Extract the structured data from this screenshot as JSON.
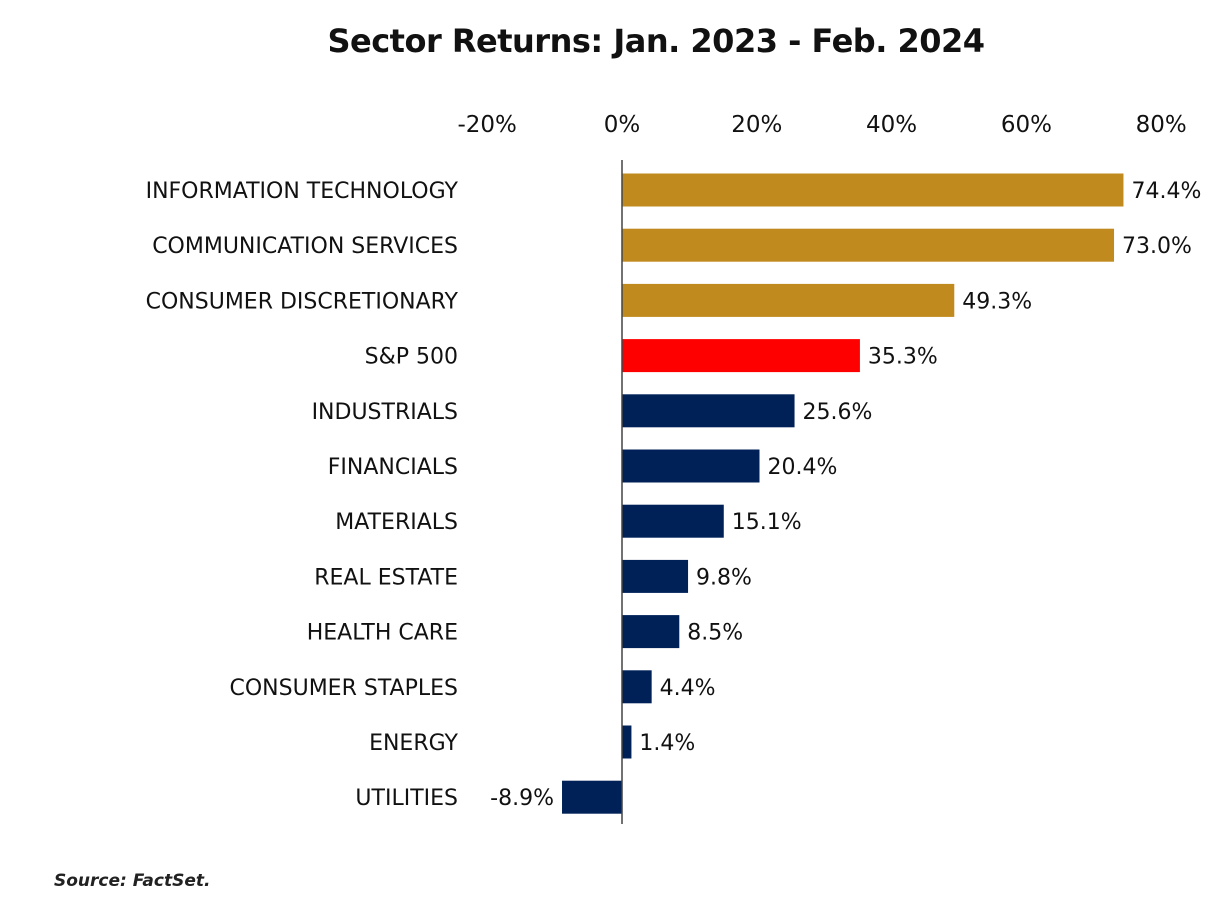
{
  "chart_data": {
    "type": "bar",
    "orientation": "horizontal",
    "title": "Sector Returns: Jan. 2023 - Feb. 2024",
    "categories": [
      "INFORMATION TECHNOLOGY",
      "COMMUNICATION SERVICES",
      "CONSUMER DISCRETIONARY",
      "S&P 500",
      "INDUSTRIALS",
      "FINANCIALS",
      "MATERIALS",
      "REAL ESTATE",
      "HEALTH CARE",
      "CONSUMER STAPLES",
      "ENERGY",
      "UTILITIES"
    ],
    "values": [
      74.4,
      73.0,
      49.3,
      35.3,
      25.6,
      20.4,
      15.1,
      9.8,
      8.5,
      4.4,
      1.4,
      -8.9
    ],
    "value_labels": [
      "74.4%",
      "73.0%",
      "49.3%",
      "35.3%",
      "25.6%",
      "20.4%",
      "15.1%",
      "9.8%",
      "8.5%",
      "4.4%",
      "1.4%",
      "-8.9%"
    ],
    "bar_colors": [
      "#C18A1E",
      "#C18A1E",
      "#C18A1E",
      "#FF0000",
      "#002157",
      "#002157",
      "#002157",
      "#002157",
      "#002157",
      "#002157",
      "#002157",
      "#002157"
    ],
    "x_ticks": [
      -20,
      0,
      20,
      40,
      60,
      80
    ],
    "x_tick_labels": [
      "-20%",
      "0%",
      "20%",
      "40%",
      "60%",
      "80%"
    ],
    "xlim": [
      -20,
      80
    ],
    "x_axis_position": "top",
    "grid": false,
    "xlabel": "",
    "ylabel": ""
  },
  "source_note": "Source: FactSet."
}
